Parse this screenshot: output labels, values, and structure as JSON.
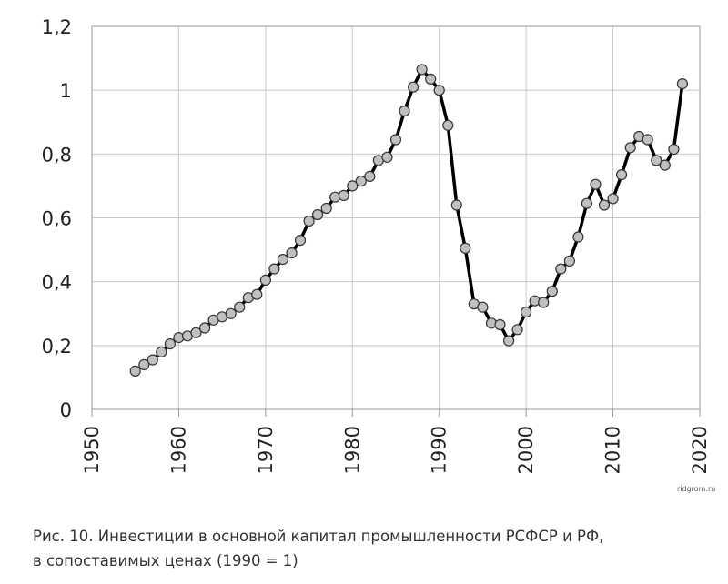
{
  "chart_data": {
    "type": "line",
    "title": "",
    "xlabel": "",
    "ylabel": "",
    "xlim": [
      1950,
      2020
    ],
    "ylim": [
      0,
      1.2
    ],
    "x_ticks": [
      "1950",
      "1960",
      "1970",
      "1980",
      "1990",
      "2000",
      "2010",
      "2020"
    ],
    "y_ticks": [
      "0",
      "0,2",
      "0,4",
      "0,6",
      "0,8",
      "1",
      "1,2"
    ],
    "grid": true,
    "colors": {
      "line": "#000000",
      "marker_fill": "#c0c0c0",
      "grid": "#c8c8c8"
    },
    "series": [
      {
        "x": [
          1955,
          1956,
          1957,
          1958,
          1959,
          1960,
          1961,
          1962,
          1963,
          1964,
          1965,
          1966,
          1967,
          1968,
          1969,
          1970,
          1971,
          1972,
          1973,
          1974,
          1975,
          1976,
          1977,
          1978,
          1979,
          1980,
          1981,
          1982,
          1983,
          1984,
          1985,
          1986,
          1987,
          1988,
          1989,
          1990,
          1991,
          1992,
          1993,
          1994,
          1995,
          1996,
          1997,
          1998,
          1999,
          2000,
          2001,
          2002,
          2003,
          2004,
          2005,
          2006,
          2007,
          2008,
          2009,
          2010,
          2011,
          2012,
          2013,
          2014,
          2015,
          2016,
          2017,
          2018
        ],
        "values": [
          0.12,
          0.14,
          0.155,
          0.18,
          0.205,
          0.225,
          0.23,
          0.24,
          0.255,
          0.28,
          0.29,
          0.3,
          0.32,
          0.35,
          0.36,
          0.405,
          0.44,
          0.47,
          0.49,
          0.53,
          0.59,
          0.61,
          0.63,
          0.665,
          0.67,
          0.7,
          0.715,
          0.73,
          0.78,
          0.79,
          0.845,
          0.935,
          1.01,
          1.065,
          1.035,
          1.0,
          0.89,
          0.64,
          0.505,
          0.33,
          0.32,
          0.27,
          0.265,
          0.215,
          0.25,
          0.305,
          0.34,
          0.335,
          0.37,
          0.44,
          0.465,
          0.54,
          0.645,
          0.705,
          0.64,
          0.66,
          0.735,
          0.82,
          0.855,
          0.845,
          0.78,
          0.765,
          0.815,
          1.02
        ]
      }
    ]
  },
  "caption": {
    "line1": "Рис. 10. Инвестиции в основной капитал промышленности РСФСР и РФ,",
    "line2": "в сопоставимых ценах (1990 = 1)"
  },
  "watermark": "ridgrom.ru"
}
